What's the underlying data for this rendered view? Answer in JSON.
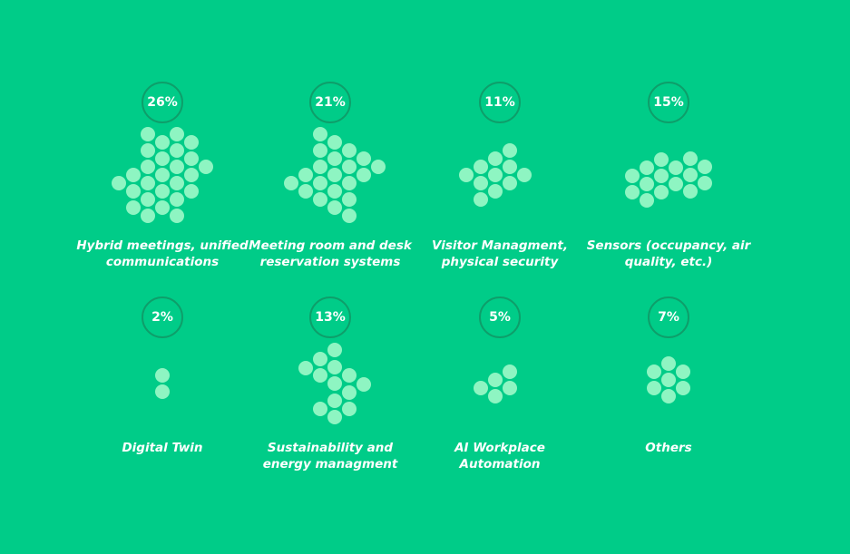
{
  "chart_data": {
    "type": "pictograph",
    "unit": "%",
    "categories": [
      "Hybrid meetings, unified communications",
      "Meeting room and desk reservation systems",
      "Visitor Managment, physical security",
      "Sensors (occupancy, air quality, etc.)",
      "Digital Twin",
      "Sustainability and energy managment",
      "AI Workplace Automation",
      "Others"
    ],
    "values": [
      26,
      21,
      11,
      15,
      2,
      13,
      5,
      7
    ],
    "value_labels": [
      "26%",
      "21%",
      "11%",
      "15%",
      "2%",
      "13%",
      "5%",
      "7%"
    ],
    "label_lines": [
      [
        "Hybrid meetings, unified",
        "communications"
      ],
      [
        "Meeting room and desk",
        "reservation systems"
      ],
      [
        "Visitor Managment,",
        "physical security"
      ],
      [
        "Sensors (occupancy, air",
        "quality, etc.)"
      ],
      [
        "Digital Twin"
      ],
      [
        "Sustainability and",
        "energy managment"
      ],
      [
        "AI Workplace",
        "Automation"
      ],
      [
        "Others"
      ]
    ],
    "colors": {
      "background": "#00cc88",
      "dot": "#8ef5c2",
      "badge_border": "#0e9e6a",
      "text": "#ffffff"
    }
  }
}
